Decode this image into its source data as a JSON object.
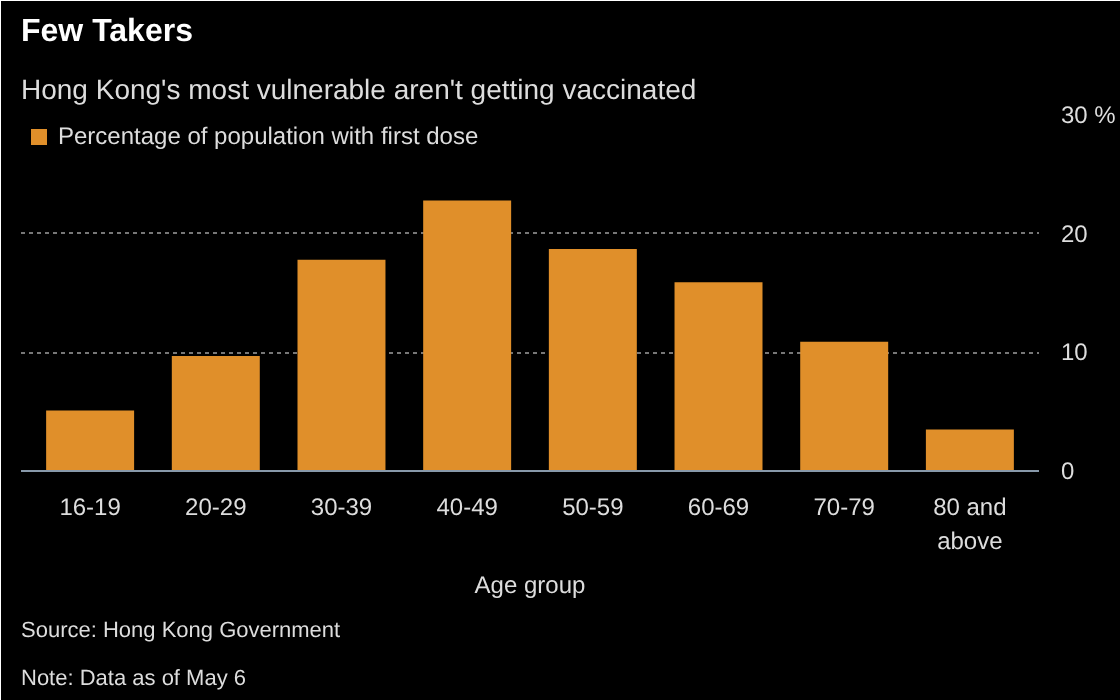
{
  "chart_data": {
    "type": "bar",
    "title": "Few Takers",
    "subtitle": "Hong Kong's most vulnerable aren't getting vaccinated",
    "xlabel": "Age group",
    "categories": [
      "16-19",
      "20-29",
      "30-39",
      "40-49",
      "50-59",
      "60-69",
      "70-79",
      "80 and above"
    ],
    "series": [
      {
        "name": "Percentage of population with first dose",
        "color": "#e08f2a",
        "values": [
          5.1,
          9.7,
          17.8,
          22.8,
          18.7,
          15.9,
          10.9,
          3.5
        ]
      }
    ],
    "ylim": [
      0,
      30
    ],
    "yticks": [
      0,
      10,
      20,
      {
        "value": 30,
        "label": "30 %"
      }
    ],
    "grid": "y",
    "legend": "top left",
    "annotations": [
      "Source: Hong Kong Government",
      "Note: Data as of May 6"
    ]
  }
}
